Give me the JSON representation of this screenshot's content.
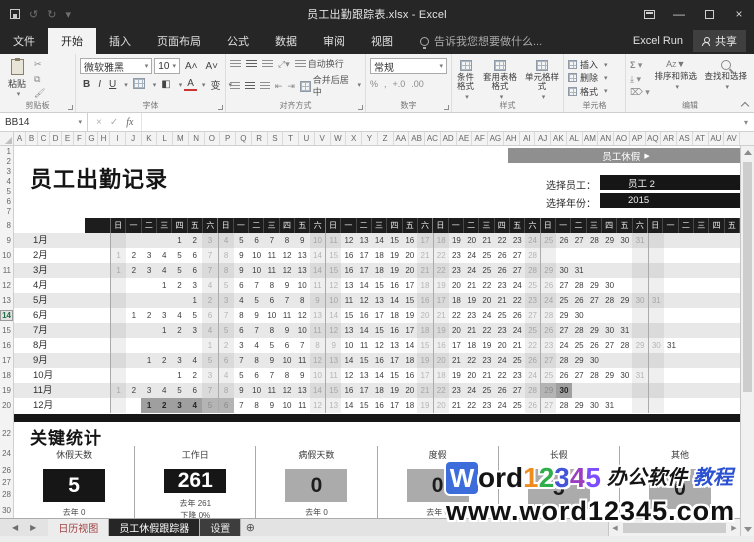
{
  "window": {
    "title": "员工出勤跟踪表.xlsx - Excel",
    "account": "Excel Run",
    "share_label": "共享"
  },
  "menu": {
    "tabs": [
      "文件",
      "开始",
      "插入",
      "页面布局",
      "公式",
      "数据",
      "审阅",
      "视图"
    ],
    "active_tab": "开始",
    "tell_me": "告诉我您想要做什么..."
  },
  "ribbon": {
    "clipboard": {
      "label": "剪贴板",
      "paste": "粘贴"
    },
    "font": {
      "label": "字体",
      "family": "微软雅黑",
      "size": "10",
      "bold": "B",
      "italic": "I",
      "underline": "U",
      "grow": "A˄",
      "shrink": "A˅"
    },
    "alignment": {
      "label": "对齐方式",
      "wrap": "自动换行",
      "merge": "合并后居中"
    },
    "number": {
      "label": "数字",
      "format": "常规",
      "icons": [
        "%",
        ",",
        "+.0",
        ".00"
      ]
    },
    "styles": {
      "label": "样式",
      "items": [
        "条件格式",
        "套用表格格式",
        "单元格样式"
      ]
    },
    "cells": {
      "label": "单元格",
      "items": [
        "插入",
        "删除",
        "格式"
      ]
    },
    "editing": {
      "label": "编辑",
      "sum": "Σ",
      "items": [
        "排序和筛选",
        "查找和选择"
      ]
    }
  },
  "formula_bar": {
    "name_box": "BB14",
    "fx": "fx",
    "value": ""
  },
  "columns": [
    "A",
    "B",
    "C",
    "D",
    "E",
    "F",
    "G",
    "H",
    "I",
    "J",
    "K",
    "L",
    "M",
    "N",
    "O",
    "P",
    "Q",
    "R",
    "S",
    "T",
    "U",
    "V",
    "W",
    "X",
    "Y",
    "Z",
    "AA",
    "AB",
    "AC",
    "AD",
    "AE",
    "AF",
    "AG",
    "AH",
    "AI",
    "AJ",
    "AK",
    "AL",
    "AM",
    "AN",
    "AO",
    "AP",
    "AQ",
    "AR",
    "AS",
    "AT",
    "AU",
    "AV"
  ],
  "gutter_rows": [
    "1",
    "2",
    "3",
    "4",
    "5",
    "6",
    "7",
    "8",
    "9",
    "10",
    "11",
    "12",
    "13",
    "14",
    "15",
    "16",
    "17",
    "18",
    "19",
    "20",
    "22",
    "24",
    "26",
    "27",
    "28",
    "30"
  ],
  "active_row": "14",
  "sheet": {
    "title": "员工出勤记录",
    "leave_button": "员工休假",
    "leave_button_arrow": "▶",
    "select_employee_label": "选择员工：",
    "employee": "员工 2",
    "select_year_label": "选择年份：",
    "year": "2015",
    "calendar": {
      "weekdays": [
        "日",
        "一",
        "二",
        "三",
        "四",
        "五",
        "六"
      ],
      "total_day_columns": 41,
      "months": [
        {
          "label": "1月",
          "start": 4,
          "days": 31
        },
        {
          "label": "2月",
          "start": 0,
          "days": 28
        },
        {
          "label": "3月",
          "start": 0,
          "days": 31
        },
        {
          "label": "4月",
          "start": 3,
          "days": 30
        },
        {
          "label": "5月",
          "start": 5,
          "days": 31
        },
        {
          "label": "6月",
          "start": 1,
          "days": 30
        },
        {
          "label": "7月",
          "start": 3,
          "days": 31
        },
        {
          "label": "8月",
          "start": 6,
          "days": 31
        },
        {
          "label": "9月",
          "start": 2,
          "days": 30
        },
        {
          "label": "10月",
          "start": 4,
          "days": 31
        },
        {
          "label": "11月",
          "start": 0,
          "days": 30
        },
        {
          "label": "12月",
          "start": 2,
          "days": 31
        }
      ],
      "leave_days": {
        "11月": [
          29,
          30
        ],
        "12月": [
          1,
          2,
          3,
          4,
          5,
          6
        ]
      }
    },
    "stats_title": "关键统计",
    "stats": [
      {
        "label": "休假天数",
        "value": "5",
        "style": "black",
        "note": "去年 0",
        "note2": ""
      },
      {
        "label": "工作日",
        "value": "261",
        "style": "black",
        "note": "去年 261",
        "note2": "下降 0%"
      },
      {
        "label": "病假天数",
        "value": "0",
        "style": "gray",
        "note": "去年 0",
        "note2": ""
      },
      {
        "label": "度假",
        "value": "0",
        "style": "gray",
        "note": "去年 0",
        "note2": ""
      },
      {
        "label": "长假",
        "value": "5",
        "style": "gray",
        "note": "",
        "note2": ""
      },
      {
        "label": "其他",
        "value": "0",
        "style": "gray",
        "note": "",
        "note2": ""
      }
    ]
  },
  "sheet_tabs": [
    {
      "label": "日历视图",
      "style": "red"
    },
    {
      "label": "员工休假跟踪器",
      "style": "dark"
    },
    {
      "label": "设置",
      "style": "dark2"
    }
  ],
  "watermark": {
    "w": "W",
    "ord": "ord",
    "digits": [
      {
        "ch": "1",
        "color": "#f08c1e"
      },
      {
        "ch": "2",
        "color": "#2fae4a"
      },
      {
        "ch": "3",
        "color": "#4355d6"
      },
      {
        "ch": "4",
        "color": "#9b3fc0"
      },
      {
        "ch": "5",
        "color": "#7c4dff"
      }
    ],
    "suffix": "办公软件",
    "suffix2": "教程",
    "line2": "www.word12345.com",
    "w_bg": "#3d6cdb"
  }
}
